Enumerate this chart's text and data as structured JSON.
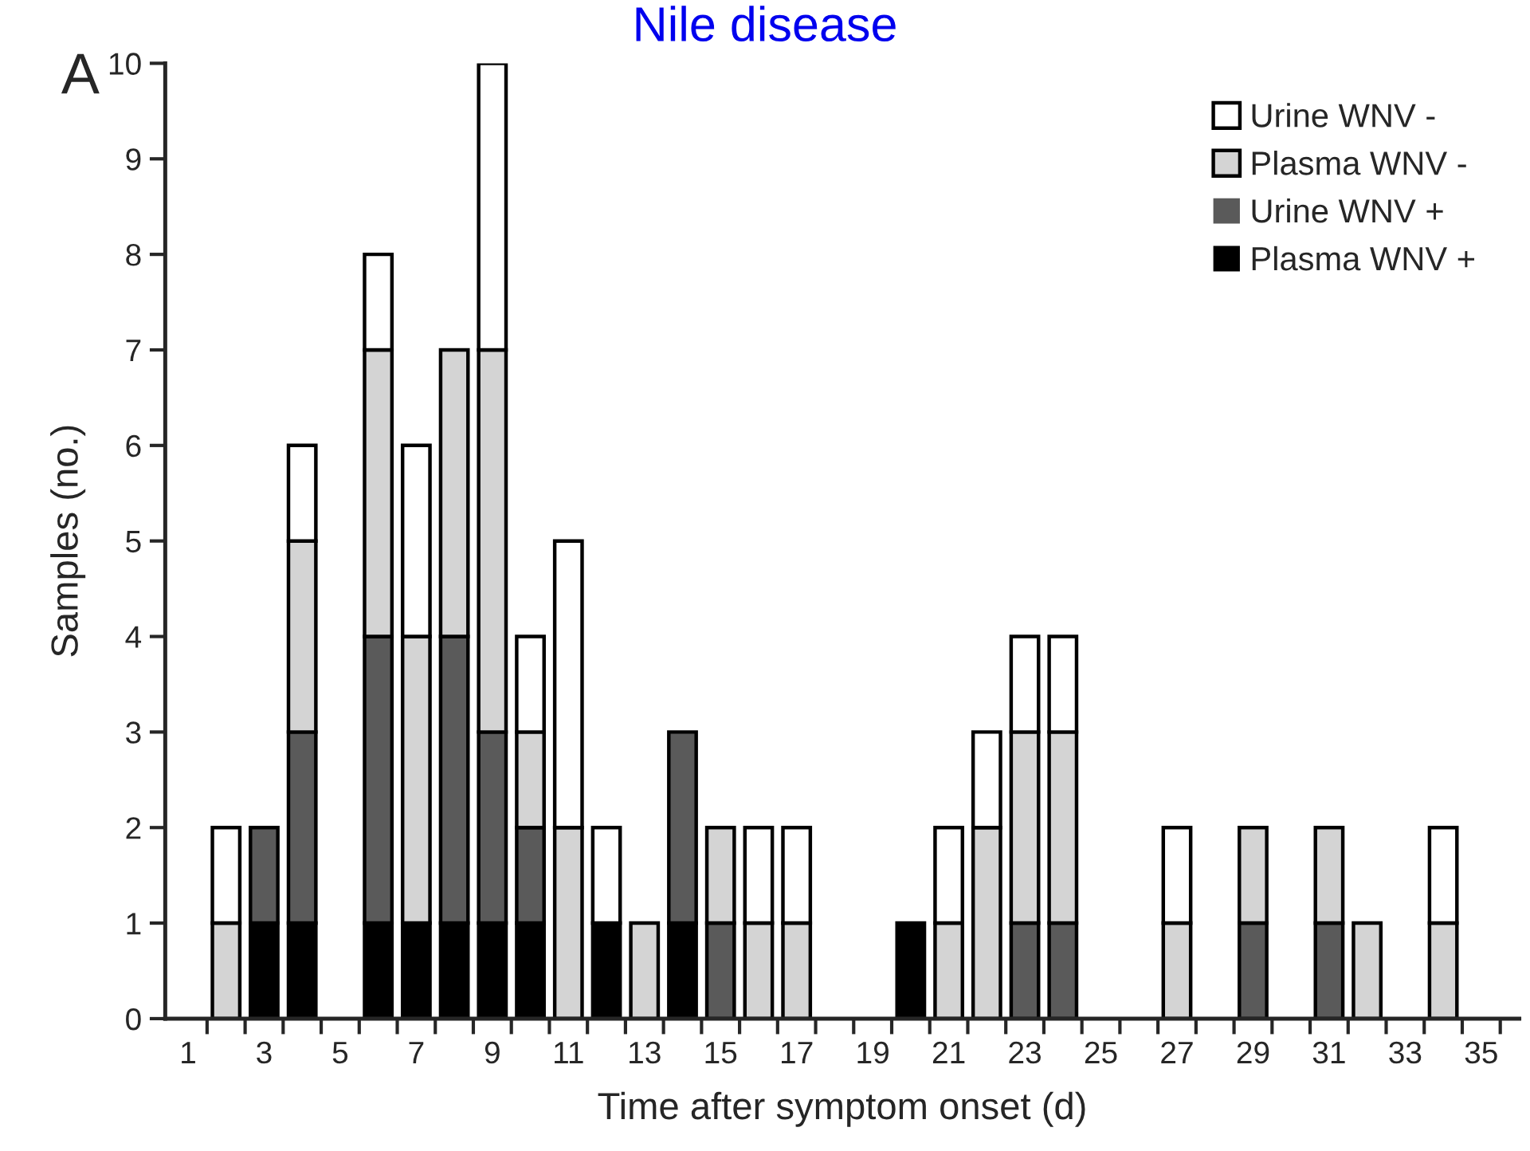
{
  "chart_data": {
    "type": "bar",
    "title": "Nile disease",
    "xlabel": "Time after symptom onset (d)",
    "ylabel": "Samples (no.)",
    "annotations": [
      "A"
    ],
    "stacked": true,
    "legend": "top right",
    "x": [
      2,
      3,
      4,
      6,
      7,
      8,
      9,
      10,
      11,
      12,
      13,
      14,
      15,
      16,
      17,
      20,
      21,
      22,
      23,
      24,
      27,
      29,
      31,
      32,
      34
    ],
    "series": [
      {
        "name": "Plasma WNV +",
        "color": "#000000",
        "values": [
          0,
          1,
          1,
          1,
          1,
          1,
          1,
          1,
          0,
          1,
          0,
          1,
          0,
          0,
          0,
          1,
          0,
          0,
          0,
          0,
          0,
          0,
          0,
          0,
          0
        ]
      },
      {
        "name": "Urine WNV +",
        "color": "#5a5a5a",
        "values": [
          0,
          1,
          2,
          3,
          0,
          3,
          2,
          1,
          0,
          0,
          0,
          2,
          1,
          0,
          0,
          0,
          0,
          0,
          1,
          1,
          0,
          1,
          1,
          0,
          0
        ]
      },
      {
        "name": "Plasma WNV -",
        "color": "#d4d4d4",
        "values": [
          1,
          0,
          2,
          3,
          3,
          3,
          4,
          1,
          2,
          0,
          1,
          0,
          1,
          1,
          1,
          0,
          1,
          2,
          2,
          2,
          1,
          1,
          1,
          1,
          1
        ]
      },
      {
        "name": "Urine WNV -",
        "color": "#ffffff",
        "values": [
          1,
          0,
          1,
          1,
          2,
          0,
          3,
          1,
          3,
          1,
          0,
          0,
          0,
          1,
          1,
          0,
          1,
          1,
          1,
          1,
          1,
          0,
          0,
          0,
          1
        ]
      }
    ],
    "xlim": [
      0.4,
      36
    ],
    "xticks": [
      1,
      3,
      5,
      7,
      9,
      11,
      13,
      15,
      17,
      19,
      21,
      23,
      25,
      27,
      29,
      31,
      33,
      35,
      {
        "value": 1.5,
        "label": null
      },
      {
        "value": 2.5,
        "label": null
      },
      {
        "value": 3.5,
        "label": null
      },
      {
        "value": 4.5,
        "label": null
      },
      {
        "value": 5.5,
        "label": null
      },
      {
        "value": 6.5,
        "label": null
      },
      {
        "value": 7.5,
        "label": null
      },
      {
        "value": 8.5,
        "label": null
      },
      {
        "value": 9.5,
        "label": null
      },
      {
        "value": 10.5,
        "label": null
      },
      {
        "value": 11.5,
        "label": null
      },
      {
        "value": 12.5,
        "label": null
      },
      {
        "value": 13.5,
        "label": null
      },
      {
        "value": 14.5,
        "label": null
      },
      {
        "value": 15.5,
        "label": null
      },
      {
        "value": 16.5,
        "label": null
      },
      {
        "value": 17.5,
        "label": null
      },
      {
        "value": 18.5,
        "label": null
      },
      {
        "value": 19.5,
        "label": null
      },
      {
        "value": 20.5,
        "label": null
      },
      {
        "value": 21.5,
        "label": null
      },
      {
        "value": 22.5,
        "label": null
      },
      {
        "value": 23.5,
        "label": null
      },
      {
        "value": 24.5,
        "label": null
      },
      {
        "value": 25.5,
        "label": null
      },
      {
        "value": 26.5,
        "label": null
      },
      {
        "value": 27.5,
        "label": null
      },
      {
        "value": 28.5,
        "label": null
      },
      {
        "value": 29.5,
        "label": null
      },
      {
        "value": 30.5,
        "label": null
      },
      {
        "value": 31.5,
        "label": null
      },
      {
        "value": 32.5,
        "label": null
      },
      {
        "value": 33.5,
        "label": null
      },
      {
        "value": 34.5,
        "label": null
      },
      {
        "value": 35.5,
        "label": null
      }
    ],
    "ylim": [
      0,
      10
    ],
    "yticks": [
      0,
      1,
      2,
      3,
      4,
      5,
      6,
      7,
      8,
      9,
      10
    ]
  }
}
